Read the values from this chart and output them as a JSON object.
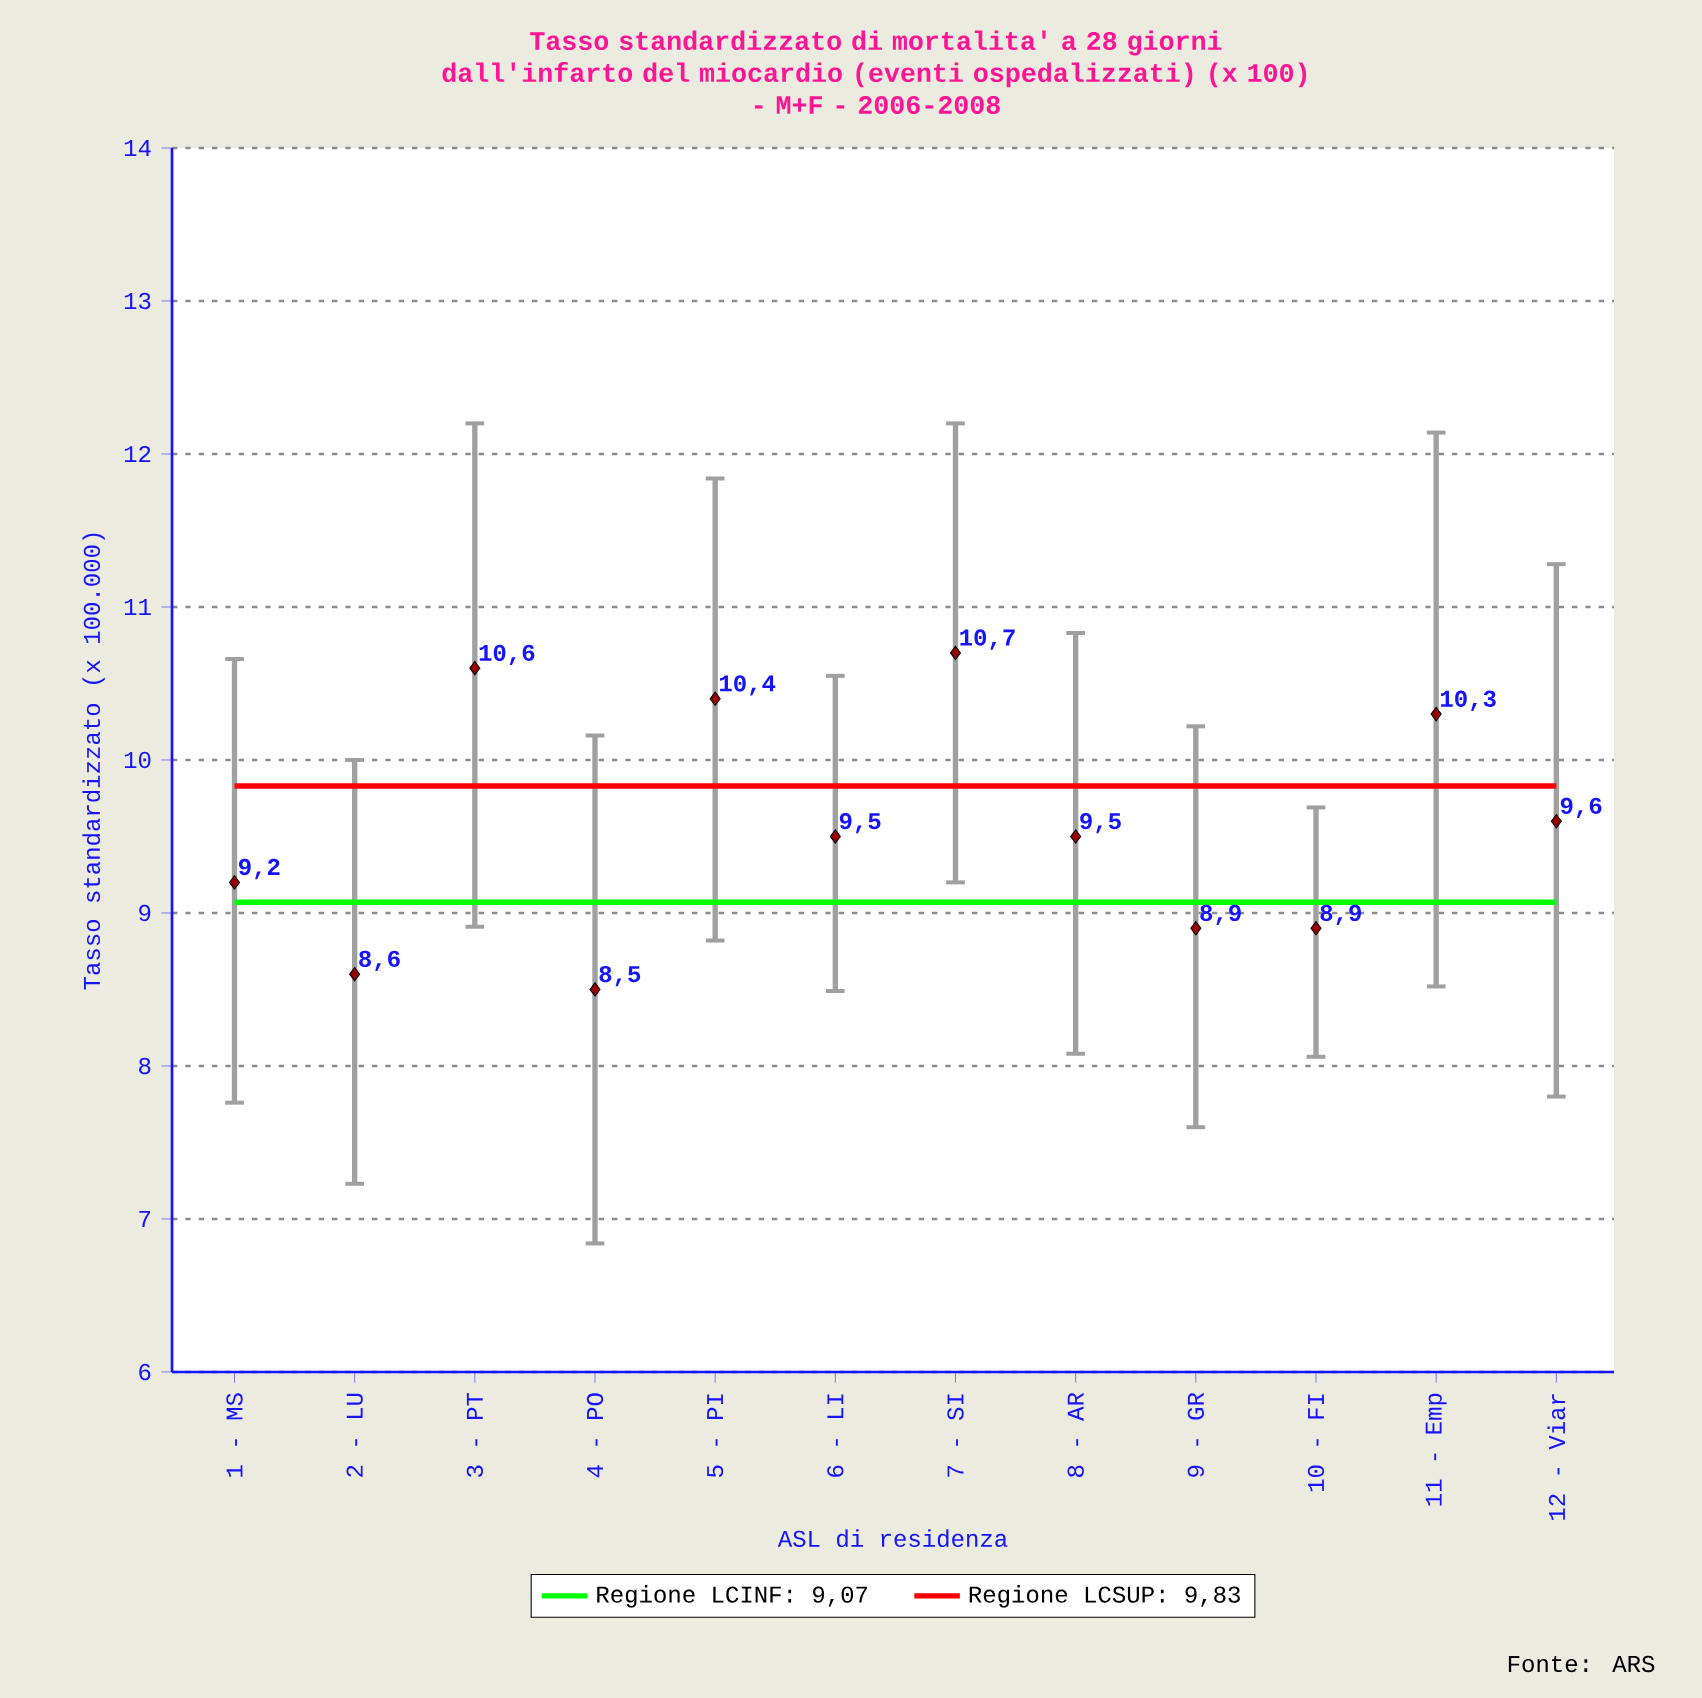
{
  "chart_data": {
    "type": "scatter",
    "title": "Tasso standardizzato di mortalita' a 28 giorni dall'infarto del miocardio (eventi ospedalizzati) (x 100)",
    "subtitle": "- M+F - 2006-2008",
    "xlabel": "ASL di residenza",
    "ylabel": "Tasso standardizzato (x 100.000)",
    "annotations": [
      "Fonte: ARS"
    ],
    "categories": [
      "1 - MS",
      "2 - LU",
      "3 - PT",
      "4 - PO",
      "5 - PI",
      "6 - LI",
      "7 - SI",
      "8 - AR",
      "9 - GR",
      "10 - FI",
      "11 - Emp",
      "12 - Viar"
    ],
    "values": [
      9.2,
      8.6,
      10.6,
      8.5,
      10.4,
      9.5,
      10.7,
      9.5,
      8.9,
      8.9,
      10.3,
      9.6
    ],
    "value_labels": [
      "9,2",
      "8,6",
      "10,6",
      "8,5",
      "10,4",
      "9,5",
      "10,7",
      "9,5",
      "8,9",
      "8,9",
      "10,3",
      "9,6"
    ],
    "errors": [
      [
        7.76,
        10.66
      ],
      [
        7.23,
        10.0
      ],
      [
        8.91,
        12.2
      ],
      [
        6.84,
        10.16
      ],
      [
        8.82,
        11.84
      ],
      [
        8.49,
        10.55
      ],
      [
        9.2,
        12.2
      ],
      [
        8.08,
        10.83
      ],
      [
        7.6,
        10.22
      ],
      [
        8.06,
        9.69
      ],
      [
        8.52,
        12.14
      ],
      [
        7.8,
        11.28
      ]
    ],
    "color": "#000000",
    "marker": "diamond",
    "ylim": [
      6,
      14
    ],
    "yticks": [
      6,
      7,
      8,
      9,
      10,
      11,
      12,
      13,
      14
    ],
    "grid": "y",
    "legend": "bottom",
    "ref_lines": [
      {
        "axis": "y",
        "value": 9.07,
        "label": "Regione LCINF: 9,07",
        "color": "#00ff00"
      },
      {
        "axis": "y",
        "value": 9.83,
        "label": "Regione LCSUP: 9,83",
        "color": "#ff0000"
      }
    ]
  }
}
